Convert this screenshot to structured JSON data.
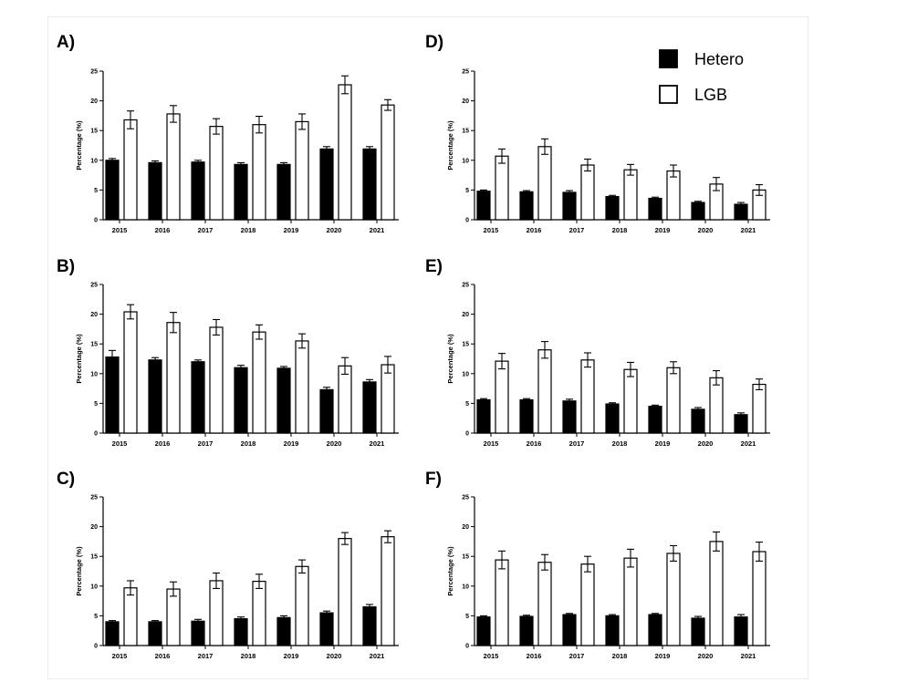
{
  "legend": {
    "position": "top-right of panel D",
    "items": [
      {
        "name": "Hetero",
        "fill": "#000000"
      },
      {
        "name": "LGB",
        "fill": "#ffffff"
      }
    ]
  },
  "chart_data": [
    {
      "type": "bar",
      "panel": "A)",
      "categories": [
        "2015",
        "2016",
        "2017",
        "2018",
        "2019",
        "2020",
        "2021"
      ],
      "ylabel": "Percentage (%)",
      "ylim": [
        0,
        25
      ],
      "yticks": [
        0,
        5,
        10,
        15,
        20,
        25
      ],
      "grid": false,
      "series": [
        {
          "name": "Hetero",
          "values": [
            10,
            9.6,
            9.7,
            9.3,
            9.3,
            11.9,
            11.9
          ],
          "errors": [
            0.3,
            0.3,
            0.3,
            0.3,
            0.3,
            0.4,
            0.4
          ]
        },
        {
          "name": "LGB",
          "values": [
            16.8,
            17.8,
            15.7,
            16.0,
            16.5,
            22.7,
            19.3
          ],
          "errors": [
            1.5,
            1.4,
            1.3,
            1.4,
            1.3,
            1.5,
            0.9
          ]
        }
      ]
    },
    {
      "type": "bar",
      "panel": "B)",
      "categories": [
        "2015",
        "2016",
        "2017",
        "2018",
        "2019",
        "2020",
        "2021"
      ],
      "ylabel": "Percentage (%)",
      "ylim": [
        0,
        25
      ],
      "yticks": [
        0,
        5,
        10,
        15,
        20,
        25
      ],
      "grid": false,
      "series": [
        {
          "name": "Hetero",
          "values": [
            12.8,
            12.3,
            12.0,
            11.0,
            10.9,
            7.3,
            8.6
          ],
          "errors": [
            1.1,
            0.4,
            0.3,
            0.4,
            0.3,
            0.4,
            0.4
          ]
        },
        {
          "name": "LGB",
          "values": [
            20.4,
            18.6,
            17.8,
            17.0,
            15.5,
            11.3,
            11.5
          ],
          "errors": [
            1.2,
            1.7,
            1.3,
            1.2,
            1.2,
            1.4,
            1.4
          ]
        }
      ]
    },
    {
      "type": "bar",
      "panel": "C)",
      "categories": [
        "2015",
        "2016",
        "2017",
        "2018",
        "2019",
        "2020",
        "2021"
      ],
      "ylabel": "Percentage (%)",
      "ylim": [
        0,
        25
      ],
      "yticks": [
        0,
        5,
        10,
        15,
        20,
        25
      ],
      "grid": false,
      "series": [
        {
          "name": "Hetero",
          "values": [
            4.0,
            4.0,
            4.1,
            4.5,
            4.7,
            5.5,
            6.5
          ],
          "errors": [
            0.2,
            0.2,
            0.3,
            0.3,
            0.3,
            0.3,
            0.4
          ]
        },
        {
          "name": "LGB",
          "values": [
            9.7,
            9.5,
            10.9,
            10.8,
            13.3,
            18.0,
            18.3
          ],
          "errors": [
            1.2,
            1.2,
            1.3,
            1.2,
            1.1,
            1.0,
            1.0
          ]
        }
      ]
    },
    {
      "type": "bar",
      "panel": "D)",
      "categories": [
        "2015",
        "2016",
        "2017",
        "2018",
        "2019",
        "2020",
        "2021"
      ],
      "ylabel": "Percentage (%)",
      "ylim": [
        0,
        25
      ],
      "yticks": [
        0,
        5,
        10,
        15,
        20,
        25
      ],
      "grid": false,
      "series": [
        {
          "name": "Hetero",
          "values": [
            4.8,
            4.7,
            4.6,
            3.9,
            3.6,
            2.9,
            2.6
          ],
          "errors": [
            0.2,
            0.2,
            0.3,
            0.2,
            0.2,
            0.2,
            0.3
          ]
        },
        {
          "name": "LGB",
          "values": [
            10.7,
            12.3,
            9.2,
            8.4,
            8.2,
            6.0,
            5.0
          ],
          "errors": [
            1.2,
            1.3,
            1.0,
            0.9,
            1.0,
            1.1,
            0.9
          ]
        }
      ]
    },
    {
      "type": "bar",
      "panel": "E)",
      "categories": [
        "2015",
        "2016",
        "2017",
        "2018",
        "2019",
        "2020",
        "2021"
      ],
      "ylabel": "Percentage (%)",
      "ylim": [
        0,
        25
      ],
      "yticks": [
        0,
        5,
        10,
        15,
        20,
        25
      ],
      "grid": false,
      "series": [
        {
          "name": "Hetero",
          "values": [
            5.6,
            5.6,
            5.4,
            4.9,
            4.5,
            4.0,
            3.1
          ],
          "errors": [
            0.2,
            0.2,
            0.3,
            0.2,
            0.2,
            0.3,
            0.3
          ]
        },
        {
          "name": "LGB",
          "values": [
            12.1,
            14.0,
            12.3,
            10.7,
            11.0,
            9.3,
            8.2
          ],
          "errors": [
            1.3,
            1.4,
            1.2,
            1.2,
            1.0,
            1.2,
            0.9
          ]
        }
      ]
    },
    {
      "type": "bar",
      "panel": "F)",
      "categories": [
        "2015",
        "2016",
        "2017",
        "2018",
        "2019",
        "2020",
        "2021"
      ],
      "ylabel": "Percentage (%)",
      "ylim": [
        0,
        25
      ],
      "yticks": [
        0,
        5,
        10,
        15,
        20,
        25
      ],
      "grid": false,
      "series": [
        {
          "name": "Hetero",
          "values": [
            4.8,
            4.9,
            5.2,
            5.0,
            5.2,
            4.6,
            4.8
          ],
          "errors": [
            0.2,
            0.2,
            0.2,
            0.2,
            0.2,
            0.3,
            0.4
          ]
        },
        {
          "name": "LGB",
          "values": [
            14.4,
            14.0,
            13.7,
            14.7,
            15.5,
            17.5,
            15.8
          ],
          "errors": [
            1.5,
            1.3,
            1.3,
            1.5,
            1.3,
            1.6,
            1.6
          ]
        }
      ]
    }
  ]
}
